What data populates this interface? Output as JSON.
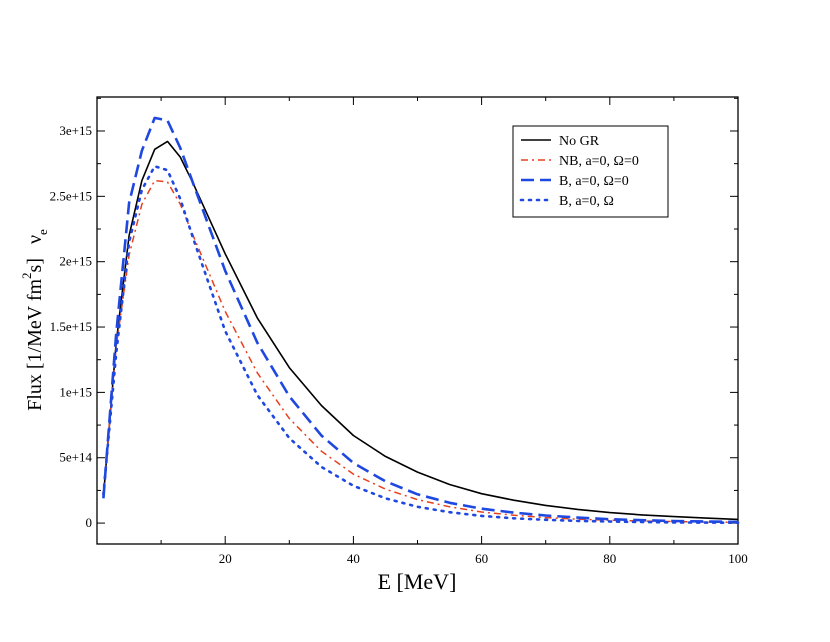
{
  "chart_data": {
    "type": "line",
    "xlabel": "E [MeV]",
    "ylabel": {
      "prefix": "Flux [1/MeV fm",
      "superscript": "2",
      "suffix": "s]",
      "symbol": "ν",
      "subscript": "e"
    },
    "xlim": [
      0,
      100
    ],
    "ylim": [
      -160000000000000.0,
      3260000000000000.0
    ],
    "x_ticks": [
      20,
      40,
      60,
      80,
      100
    ],
    "x_tick_labels": [
      "20",
      "40",
      "60",
      "80",
      "100"
    ],
    "y_ticks": [
      0,
      500000000000000.0,
      1000000000000000.0,
      1500000000000000.0,
      2000000000000000.0,
      2500000000000000.0,
      3000000000000000.0
    ],
    "y_tick_labels": [
      "0",
      "5e+14",
      "1e+15",
      "1.5e+15",
      "2e+15",
      "2.5e+15",
      "3e+15"
    ],
    "legend_position": "top-right",
    "series": [
      {
        "name": "No GR",
        "color": "#000000",
        "style": "solid",
        "x": [
          1,
          3,
          5,
          7,
          9,
          11,
          13,
          15,
          20,
          25,
          30,
          35,
          40,
          45,
          50,
          55,
          60,
          65,
          70,
          75,
          80,
          85,
          90,
          95,
          100
        ],
        "y": [
          200000000000000.0,
          1380000000000000.0,
          2200000000000000.0,
          2620000000000000.0,
          2860000000000000.0,
          2920000000000000.0,
          2800000000000000.0,
          2600000000000000.0,
          2060000000000000.0,
          1570000000000000.0,
          1190000000000000.0,
          900000000000000.0,
          670000000000000.0,
          510000000000000.0,
          390000000000000.0,
          295000000000000.0,
          225000000000000.0,
          175000000000000.0,
          135000000000000.0,
          105000000000000.0,
          80000000000000.0,
          63000000000000.0,
          50000000000000.0,
          38000000000000.0,
          28000000000000.0
        ]
      },
      {
        "name": "NB, a=0, Ω=0",
        "color": "#e8401c",
        "style": "dashdot",
        "x": [
          1,
          3,
          5,
          7,
          9,
          11,
          13,
          15,
          20,
          25,
          30,
          35,
          40,
          45,
          50,
          55,
          60,
          65,
          70,
          75,
          80,
          85,
          90,
          95,
          100
        ],
        "y": [
          210000000000000.0,
          1350000000000000.0,
          2050000000000000.0,
          2440000000000000.0,
          2620000000000000.0,
          2610000000000000.0,
          2440000000000000.0,
          2200000000000000.0,
          1620000000000000.0,
          1150000000000000.0,
          800000000000000.0,
          550000000000000.0,
          375000000000000.0,
          260000000000000.0,
          180000000000000.0,
          125000000000000.0,
          85000000000000.0,
          60000000000000.0,
          42000000000000.0,
          30000000000000.0,
          22000000000000.0,
          16000000000000.0,
          12000000000000.0,
          8000000000000.0,
          6000000000000.0
        ]
      },
      {
        "name": "B, a=0, Ω=0",
        "color": "#1f48e0",
        "style": "dashed",
        "x": [
          1,
          3,
          5,
          7,
          9,
          11,
          13,
          15,
          20,
          25,
          30,
          35,
          40,
          45,
          50,
          55,
          60,
          65,
          70,
          75,
          80,
          85,
          90,
          95,
          100
        ],
        "y": [
          190000000000000.0,
          1450000000000000.0,
          2450000000000000.0,
          2850000000000000.0,
          3100000000000000.0,
          3080000000000000.0,
          2870000000000000.0,
          2600000000000000.0,
          1930000000000000.0,
          1380000000000000.0,
          970000000000000.0,
          670000000000000.0,
          460000000000000.0,
          320000000000000.0,
          220000000000000.0,
          155000000000000.0,
          110000000000000.0,
          80000000000000.0,
          58000000000000.0,
          42000000000000.0,
          30000000000000.0,
          22000000000000.0,
          16000000000000.0,
          12000000000000.0,
          9000000000000.0
        ]
      },
      {
        "name": "B, a=0, Ω",
        "color": "#1f48e0",
        "style": "dotted",
        "x": [
          1,
          3,
          5,
          7,
          9,
          11,
          13,
          15,
          20,
          25,
          30,
          35,
          40,
          45,
          50,
          55,
          60,
          65,
          70,
          75,
          80,
          85,
          90,
          95,
          100
        ],
        "y": [
          220000000000000.0,
          1300000000000000.0,
          2150000000000000.0,
          2550000000000000.0,
          2730000000000000.0,
          2700000000000000.0,
          2480000000000000.0,
          2180000000000000.0,
          1470000000000000.0,
          980000000000000.0,
          650000000000000.0,
          430000000000000.0,
          285000000000000.0,
          190000000000000.0,
          125000000000000.0,
          83000000000000.0,
          55000000000000.0,
          37000000000000.0,
          25000000000000.0,
          17000000000000.0,
          12000000000000.0,
          8000000000000.0,
          5500000000000.0,
          3800000000000.0,
          2600000000000.0
        ]
      }
    ]
  }
}
